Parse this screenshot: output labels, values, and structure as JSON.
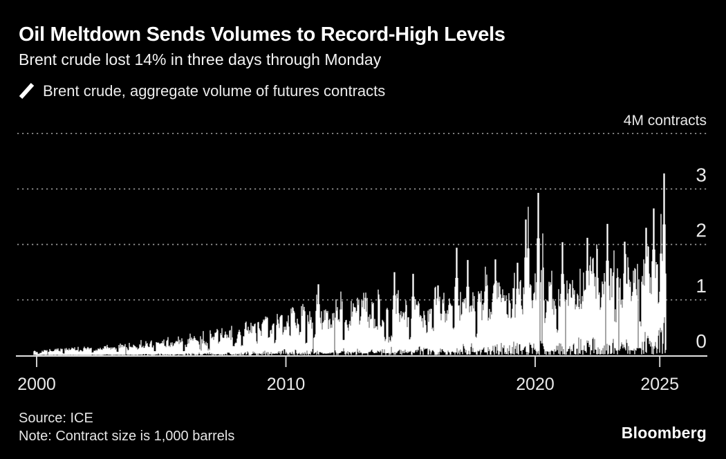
{
  "header": {
    "title": "Oil Meltdown Sends Volumes to Record-High Levels",
    "subtitle": "Brent crude lost 14% in three days through Monday"
  },
  "legend": {
    "label": "Brent crude, aggregate volume of futures contracts"
  },
  "footer": {
    "source": "Source: ICE",
    "note": "Note: Contract size is 1,000 barrels",
    "brand": "Bloomberg"
  },
  "colors": {
    "background": "#000000",
    "series": "#ffffff",
    "grid": "#979797",
    "axis": "#e2e2e2",
    "tick": "#cfcfcf",
    "axis_text": "#e9e9e9",
    "title_text": "#ffffff"
  },
  "chart_data": {
    "type": "line",
    "title": "Oil Meltdown Sends Volumes to Record-High Levels",
    "subtitle": "Brent crude lost 14% in three days through Monday",
    "series_name": "Brent crude, aggregate volume of futures contracts",
    "resolution": "daily volume, rendered as dense per-pixel high-low columns",
    "unit": "M contracts",
    "legend_position": "top-left",
    "grid": "horizontal-dotted",
    "x_axis": {
      "min": 1999.9,
      "max": 2026.9,
      "ticks": [
        2000,
        2010,
        2020,
        2025
      ],
      "tick_labels": [
        "2000",
        "2010",
        "2020",
        "2025"
      ]
    },
    "y_axis": {
      "min": 0,
      "max": 4,
      "ticks": [
        3,
        2,
        1,
        0
      ],
      "tick_labels": [
        "3",
        "2",
        "1",
        "0"
      ],
      "grid_levels": [
        4,
        3,
        2,
        1
      ],
      "top_label": "4M contracts"
    },
    "data_start": 1999.88,
    "data_end": 2025.25,
    "record_high": {
      "year": 2025.18,
      "value": 3.28
    },
    "envelope_year_low_high": [
      [
        1999.9,
        0.01,
        0.09
      ],
      [
        2001.0,
        0.01,
        0.11
      ],
      [
        2002.0,
        0.01,
        0.12
      ],
      [
        2003.0,
        0.02,
        0.14
      ],
      [
        2004.0,
        0.02,
        0.18
      ],
      [
        2005.0,
        0.03,
        0.24
      ],
      [
        2006.0,
        0.04,
        0.28
      ],
      [
        2007.0,
        0.05,
        0.34
      ],
      [
        2008.0,
        0.06,
        0.48
      ],
      [
        2009.0,
        0.08,
        0.56
      ],
      [
        2010.0,
        0.1,
        0.7
      ],
      [
        2011.0,
        0.1,
        0.82
      ],
      [
        2012.0,
        0.12,
        0.8
      ],
      [
        2013.0,
        0.12,
        0.85
      ],
      [
        2014.0,
        0.13,
        0.92
      ],
      [
        2015.0,
        0.15,
        0.95
      ],
      [
        2016.0,
        0.15,
        1.02
      ],
      [
        2017.0,
        0.18,
        1.05
      ],
      [
        2018.0,
        0.2,
        1.12
      ],
      [
        2019.0,
        0.22,
        1.18
      ],
      [
        2020.0,
        0.25,
        1.3
      ],
      [
        2021.0,
        0.25,
        1.22
      ],
      [
        2022.0,
        0.28,
        1.38
      ],
      [
        2023.0,
        0.3,
        1.45
      ],
      [
        2024.0,
        0.33,
        1.55
      ],
      [
        2025.0,
        0.42,
        1.7
      ],
      [
        2025.25,
        0.85,
        2.2
      ]
    ],
    "peak_events_year_value": [
      [
        2008.75,
        0.56
      ],
      [
        2010.1,
        0.72
      ],
      [
        2011.3,
        1.28
      ],
      [
        2012.2,
        1.15
      ],
      [
        2014.35,
        1.5
      ],
      [
        2015.1,
        1.47
      ],
      [
        2016.1,
        1.26
      ],
      [
        2016.85,
        1.94
      ],
      [
        2017.3,
        1.72
      ],
      [
        2018.0,
        1.6
      ],
      [
        2018.4,
        1.73
      ],
      [
        2019.3,
        1.67
      ],
      [
        2019.62,
        2.45
      ],
      [
        2019.72,
        2.68
      ],
      [
        2020.13,
        2.93
      ],
      [
        2020.3,
        2.2
      ],
      [
        2021.1,
        2.04
      ],
      [
        2022.1,
        2.12
      ],
      [
        2022.5,
        1.92
      ],
      [
        2022.9,
        2.37
      ],
      [
        2023.6,
        2.05
      ],
      [
        2024.45,
        2.3
      ],
      [
        2024.75,
        2.65
      ],
      [
        2025.05,
        2.55
      ],
      [
        2025.18,
        3.28
      ]
    ],
    "seed": 42
  }
}
